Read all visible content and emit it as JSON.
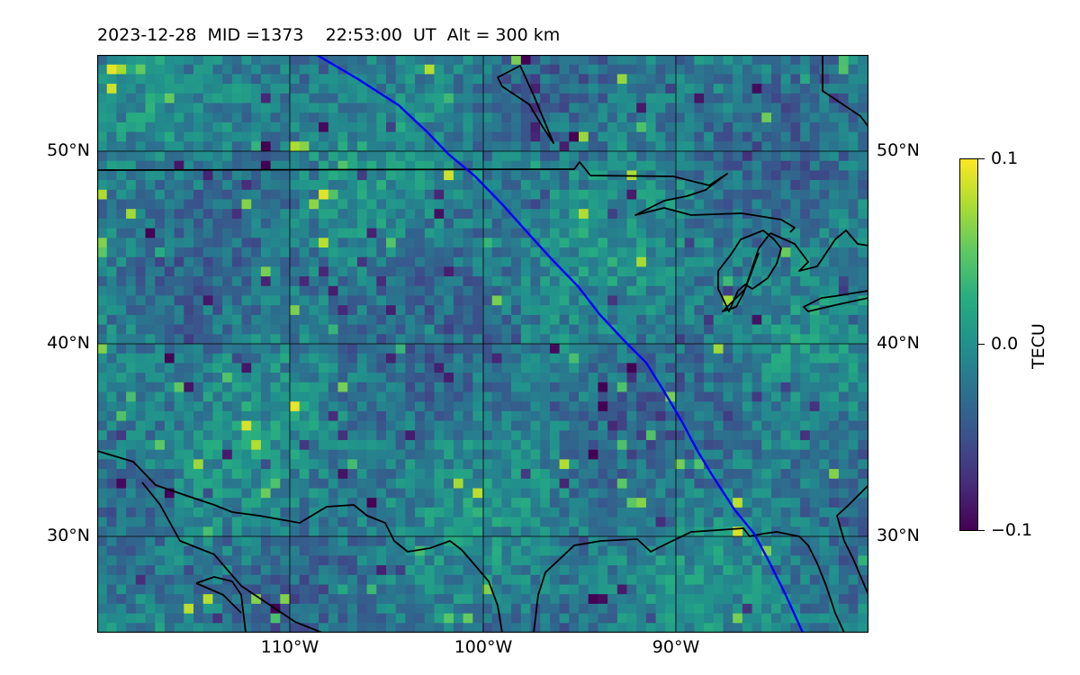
{
  "title": {
    "date": "2023-12-28",
    "mid": "MID =1373",
    "time": "22:53:00  UT",
    "alt": "Alt = 300 km"
  },
  "map": {
    "lat_labels": [
      "50°N",
      "40°N",
      "30°N"
    ],
    "lon_labels": [
      "110°W",
      "100°W",
      "90°W"
    ],
    "extent": {
      "lon": [
        -120,
        -80
      ],
      "lat": [
        25,
        55
      ]
    },
    "track_color": "#0000ff",
    "coastline_color": "#000000"
  },
  "colorbar": {
    "title": "TECU",
    "labels": [
      "0.1",
      "0.0",
      "−0.1"
    ],
    "range": [
      -0.1,
      0.1
    ],
    "colormap": "viridis"
  }
}
